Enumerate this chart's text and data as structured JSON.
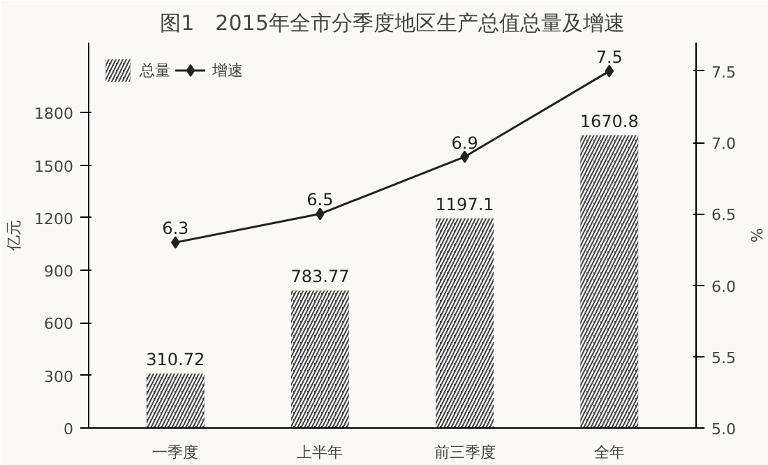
{
  "chart_data": {
    "type": "bar",
    "title": "图1　2015年全市分季度地区生产总值总量及增速",
    "categories": [
      "一季度",
      "上半年",
      "前三季度",
      "全年"
    ],
    "series": [
      {
        "name": "总量",
        "color": "#444444",
        "values": [
          310.72,
          783.77,
          1197.1,
          1670.8
        ]
      },
      {
        "name": "增速",
        "type": "line",
        "axis": "y2",
        "color": "#222222",
        "marker": "diamond",
        "values": [
          6.3,
          6.5,
          6.9,
          7.5
        ]
      }
    ],
    "ylabel": "亿元",
    "y2label": "%",
    "ylim": [
      0,
      2200
    ],
    "yticks": [
      0,
      300,
      600,
      900,
      1200,
      1500,
      1800
    ],
    "y2lim": [
      5.0,
      7.7
    ],
    "y2ticks": [
      {
        "value": 5.0,
        "label": "5.0"
      },
      {
        "value": 5.5,
        "label": "5.5"
      },
      {
        "value": 6.0,
        "label": "6.0"
      },
      {
        "value": 6.5,
        "label": "6.5"
      },
      {
        "value": 7.0,
        "label": "7.0"
      },
      {
        "value": 7.5,
        "label": "7.5"
      }
    ],
    "data_labels": true,
    "legend": "top left",
    "grid": false
  }
}
